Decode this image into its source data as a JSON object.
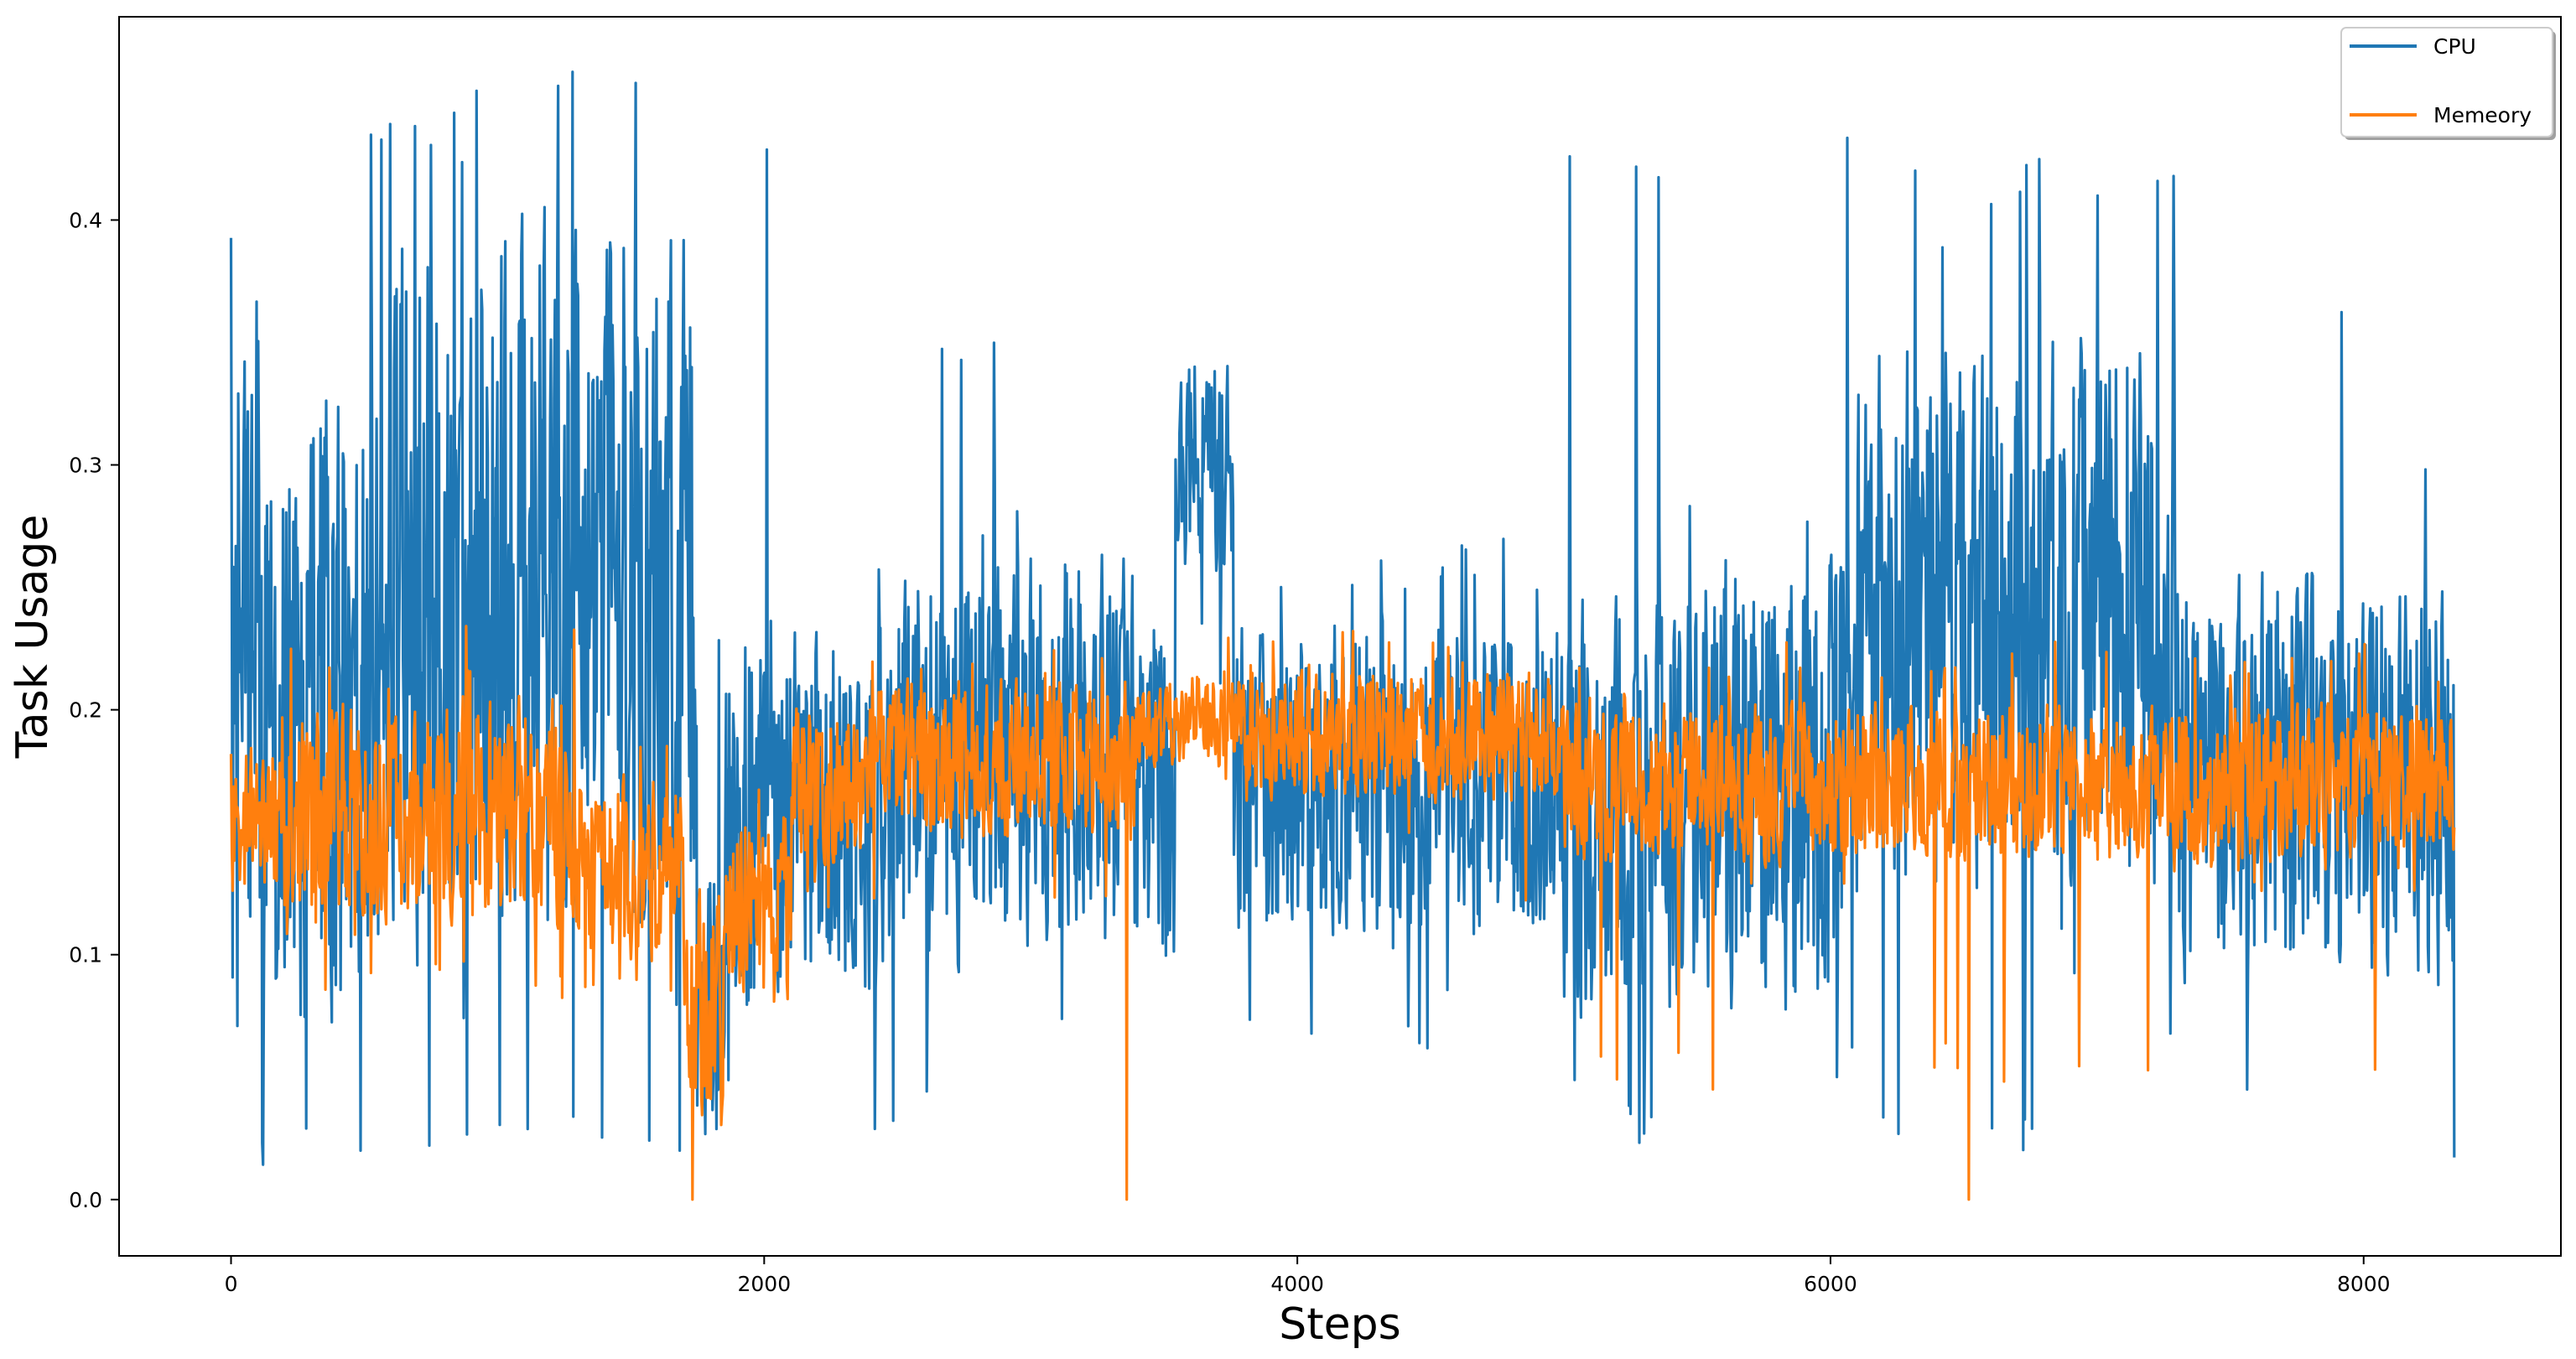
{
  "chart_data": {
    "type": "line",
    "title": "",
    "xlabel": "Steps",
    "ylabel": "Task Usage",
    "xlim": [
      -420,
      8740
    ],
    "ylim": [
      -0.023,
      0.483
    ],
    "x_ticks": [
      0,
      2000,
      4000,
      6000,
      8000
    ],
    "x_tick_labels": [
      "0",
      "2000",
      "4000",
      "6000",
      "8000"
    ],
    "y_ticks": [
      0.0,
      0.1,
      0.2,
      0.3,
      0.4
    ],
    "y_tick_labels": [
      "0.0",
      "0.1",
      "0.2",
      "0.3",
      "0.4"
    ],
    "grid": false,
    "legend_position": "top-right",
    "x_range": [
      0,
      8340
    ],
    "series": [
      {
        "name": "CPU",
        "color": "#1f77b4",
        "segments": [
          {
            "x_start": 0,
            "x_end": 150,
            "mean": 0.22,
            "amp": 0.17,
            "min": 0.01,
            "max": 0.405
          },
          {
            "x_start": 150,
            "x_end": 600,
            "mean": 0.2,
            "amp": 0.14,
            "min": 0.02,
            "max": 0.445
          },
          {
            "x_start": 600,
            "x_end": 1750,
            "mean": 0.25,
            "amp": 0.16,
            "min": 0.02,
            "max": 0.462
          },
          {
            "x_start": 1750,
            "x_end": 1850,
            "mean": 0.08,
            "amp": 0.07,
            "min": 0.005,
            "max": 0.24
          },
          {
            "x_start": 1850,
            "x_end": 2050,
            "mean": 0.16,
            "amp": 0.09,
            "min": 0.03,
            "max": 0.44
          },
          {
            "x_start": 2050,
            "x_end": 2400,
            "mean": 0.16,
            "amp": 0.08,
            "min": 0.025,
            "max": 0.3
          },
          {
            "x_start": 2400,
            "x_end": 3400,
            "mean": 0.18,
            "amp": 0.09,
            "min": 0.025,
            "max": 0.36
          },
          {
            "x_start": 3400,
            "x_end": 3540,
            "mean": 0.17,
            "amp": 0.08,
            "min": 0.07,
            "max": 0.34
          },
          {
            "x_start": 3540,
            "x_end": 3760,
            "mean": 0.3,
            "amp": 0.05,
            "min": 0.2,
            "max": 0.358
          },
          {
            "x_start": 3760,
            "x_end": 5000,
            "mean": 0.17,
            "amp": 0.07,
            "min": 0.06,
            "max": 0.27
          },
          {
            "x_start": 5000,
            "x_end": 5400,
            "mean": 0.16,
            "amp": 0.09,
            "min": 0.02,
            "max": 0.436
          },
          {
            "x_start": 5400,
            "x_end": 6100,
            "mean": 0.17,
            "amp": 0.1,
            "min": 0.04,
            "max": 0.445
          },
          {
            "x_start": 6100,
            "x_end": 7300,
            "mean": 0.24,
            "amp": 0.12,
            "min": 0.02,
            "max": 0.425
          },
          {
            "x_start": 7300,
            "x_end": 8340,
            "mean": 0.17,
            "amp": 0.09,
            "min": 0.015,
            "max": 0.38
          }
        ]
      },
      {
        "name": "Memeory",
        "color": "#ff7f0e",
        "segments": [
          {
            "x_start": 0,
            "x_end": 200,
            "mean": 0.155,
            "amp": 0.035,
            "min": 0.1,
            "max": 0.21
          },
          {
            "x_start": 200,
            "x_end": 1300,
            "mean": 0.16,
            "amp": 0.05,
            "min": 0.08,
            "max": 0.235
          },
          {
            "x_start": 1300,
            "x_end": 1700,
            "mean": 0.135,
            "amp": 0.04,
            "min": 0.08,
            "max": 0.19
          },
          {
            "x_start": 1700,
            "x_end": 1850,
            "mean": 0.08,
            "amp": 0.05,
            "min": 0.0,
            "max": 0.16
          },
          {
            "x_start": 1850,
            "x_end": 2100,
            "mean": 0.12,
            "amp": 0.04,
            "min": 0.07,
            "max": 0.18
          },
          {
            "x_start": 2100,
            "x_end": 2400,
            "mean": 0.17,
            "amp": 0.035,
            "min": 0.11,
            "max": 0.22
          },
          {
            "x_start": 2400,
            "x_end": 3400,
            "mean": 0.18,
            "amp": 0.035,
            "min": 0.11,
            "max": 0.228
          },
          {
            "x_start": 3400,
            "x_end": 3800,
            "mean": 0.195,
            "amp": 0.02,
            "min": 0.15,
            "max": 0.232
          },
          {
            "x_start": 3800,
            "x_end": 5000,
            "mean": 0.19,
            "amp": 0.03,
            "min": 0.12,
            "max": 0.235
          },
          {
            "x_start": 5000,
            "x_end": 8340,
            "mean": 0.17,
            "amp": 0.035,
            "min": 0.045,
            "max": 0.228
          }
        ],
        "dips": [
          {
            "x": 1730,
            "y": 0.0
          },
          {
            "x": 3360,
            "y": 0.0
          },
          {
            "x": 5560,
            "y": 0.045
          },
          {
            "x": 6520,
            "y": 0.0
          }
        ]
      }
    ]
  }
}
